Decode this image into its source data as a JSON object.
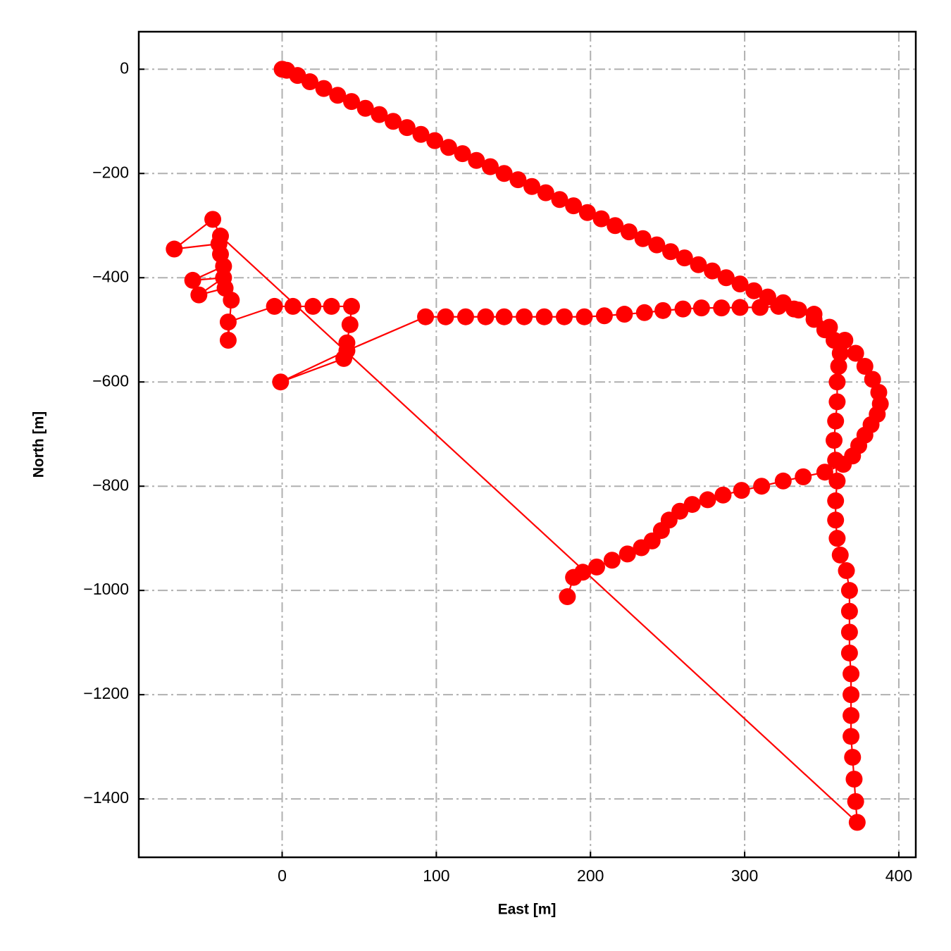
{
  "chart_data": {
    "type": "line",
    "color": "#ff0000",
    "xlabel": "East [m]",
    "ylabel": "North [m]",
    "grid": true,
    "xlim": [
      -93,
      411
    ],
    "ylim": [
      -1512,
      72
    ],
    "xticks": [
      0,
      100,
      200,
      300,
      400
    ],
    "yticks": [
      {
        "value": 0,
        "label": "0"
      },
      {
        "value": -200,
        "label": "−200"
      },
      {
        "value": -400,
        "label": "−400"
      },
      {
        "value": -600,
        "label": "−600"
      },
      {
        "value": -800,
        "label": "−800"
      },
      {
        "value": -1000,
        "label": "−1000"
      },
      {
        "value": -1200,
        "label": "−1200"
      },
      {
        "value": -1400,
        "label": "−1400"
      }
    ],
    "x": [
      0,
      3,
      10,
      18,
      27,
      36,
      45,
      54,
      63,
      72,
      81,
      90,
      99,
      108,
      117,
      126,
      135,
      144,
      153,
      162,
      171,
      180,
      189,
      198,
      207,
      216,
      225,
      234,
      243,
      252,
      261,
      270,
      279,
      288,
      297,
      306,
      315,
      325,
      335,
      345,
      352,
      358,
      362,
      361,
      360,
      360,
      359,
      358,
      359,
      360,
      359,
      359,
      360,
      362,
      366,
      368,
      368,
      368,
      368,
      369,
      369,
      369,
      369,
      370,
      371,
      372,
      373,
      -40,
      -45,
      -70,
      -41,
      -40,
      -38,
      -58,
      -38,
      -54,
      -37,
      -33,
      -35,
      -35,
      -5,
      7,
      20,
      32,
      45,
      44,
      42,
      40,
      -1,
      42,
      93,
      106,
      119,
      132,
      144,
      157,
      170,
      183,
      196,
      209,
      222,
      235,
      247,
      260,
      272,
      285,
      297,
      310,
      322,
      332,
      345,
      355,
      365,
      372,
      378,
      383,
      387,
      388,
      386,
      382,
      378,
      374,
      370,
      364,
      352,
      338,
      325,
      311,
      298,
      286,
      276,
      266,
      258,
      251,
      246,
      240,
      233,
      224,
      214,
      204,
      195,
      189,
      185
    ],
    "values": [
      0,
      -2,
      -12,
      -24,
      -37,
      -50,
      -62,
      -75,
      -87,
      -100,
      -112,
      -125,
      -137,
      -150,
      -162,
      -175,
      -187,
      -200,
      -212,
      -225,
      -237,
      -250,
      -262,
      -275,
      -287,
      -300,
      -312,
      -325,
      -337,
      -350,
      -362,
      -375,
      -387,
      -400,
      -412,
      -425,
      -437,
      -448,
      -462,
      -480,
      -500,
      -520,
      -545,
      -570,
      -600,
      -638,
      -675,
      -712,
      -750,
      -790,
      -828,
      -865,
      -900,
      -932,
      -962,
      -1000,
      -1040,
      -1080,
      -1120,
      -1160,
      -1200,
      -1240,
      -1280,
      -1320,
      -1362,
      -1405,
      -1445,
      -320,
      -288,
      -345,
      -335,
      -355,
      -378,
      -405,
      -400,
      -433,
      -420,
      -443,
      -520,
      -485,
      -455,
      -455,
      -455,
      -455,
      -455,
      -490,
      -525,
      -555,
      -600,
      -540,
      -475,
      -475,
      -475,
      -475,
      -475,
      -475,
      -475,
      -475,
      -475,
      -473,
      -470,
      -467,
      -463,
      -460,
      -458,
      -458,
      -457,
      -457,
      -455,
      -460,
      -470,
      -495,
      -520,
      -545,
      -570,
      -595,
      -620,
      -642,
      -662,
      -682,
      -702,
      -722,
      -742,
      -758,
      -773,
      -782,
      -790,
      -800,
      -808,
      -817,
      -826,
      -835,
      -848,
      -865,
      -885,
      -905,
      -918,
      -930,
      -942,
      -955,
      -965,
      -975,
      -1012
    ]
  }
}
